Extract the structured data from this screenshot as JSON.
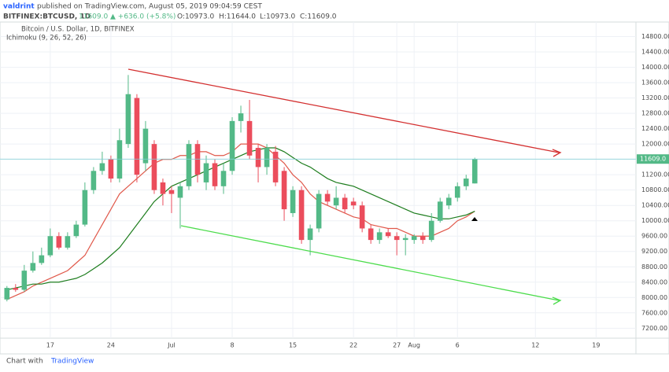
{
  "header": {
    "user": "valdrint",
    "published": "published on TradingView.com, August 05, 2019 09:04:59 CEST",
    "symbol": "BITFINEX:BTCUSD, 1D",
    "price": "11609.0",
    "change": "▲ +636.0 (+5.8%)",
    "open": "O:10973.0",
    "high": "H:11644.0",
    "low": "L:10973.0",
    "close": "C:11609.0"
  },
  "footer": {
    "text": "Chart with",
    "brand": "TradingView"
  },
  "chart_data": {
    "type": "candlestick",
    "title": "Bitcoin / U.S. Dollar, 1D, BITFINEX",
    "subtitle": "Ichimoku (9, 26, 52, 26)",
    "x": [
      0,
      1,
      2,
      3,
      4,
      5,
      6,
      7,
      8,
      9,
      10,
      11,
      12,
      13,
      14,
      15,
      16,
      17,
      18,
      19,
      20,
      21,
      22,
      23,
      24,
      25,
      26,
      27,
      28,
      29,
      30,
      31,
      32,
      33,
      34,
      35,
      36,
      37,
      38,
      39,
      40,
      41,
      42,
      43,
      44,
      45,
      46,
      47,
      48,
      49,
      50,
      51,
      52,
      53,
      54
    ],
    "open": [
      7950,
      8250,
      8200,
      8700,
      8900,
      9100,
      9600,
      9300,
      9600,
      9900,
      10800,
      11300,
      11600,
      11100,
      12000,
      13200,
      11500,
      12000,
      11000,
      10800,
      10600,
      10900,
      12000,
      11000,
      11500,
      10900,
      11300,
      12600,
      12600,
      11900,
      11400,
      11800,
      11300,
      10200,
      10800,
      9500,
      9800,
      10700,
      10400,
      10600,
      10500,
      10400,
      9800,
      9500,
      9700,
      9600,
      9500,
      9500,
      9600,
      9500,
      10000,
      10400,
      10600,
      10900,
      10973
    ],
    "high": [
      8300,
      8350,
      8850,
      9200,
      9300,
      9800,
      9700,
      9700,
      10000,
      11000,
      11400,
      11800,
      11700,
      12400,
      13800,
      13300,
      12600,
      12100,
      11100,
      10900,
      11000,
      12100,
      12100,
      11700,
      11600,
      11500,
      12700,
      13000,
      13150,
      12000,
      12000,
      11950,
      11400,
      10900,
      10900,
      9900,
      10800,
      10800,
      10900,
      10700,
      10600,
      10500,
      9900,
      9800,
      9800,
      9700,
      9650,
      9650,
      9700,
      10200,
      10600,
      10700,
      11000,
      11200,
      11644
    ],
    "low": [
      7900,
      8150,
      8150,
      8650,
      8850,
      9050,
      9250,
      9250,
      9550,
      9850,
      10700,
      11200,
      11000,
      11000,
      11900,
      11000,
      11300,
      10700,
      10400,
      10200,
      9800,
      10800,
      11000,
      10800,
      10800,
      10700,
      11200,
      12300,
      11600,
      11000,
      11200,
      10900,
      10000,
      10100,
      9400,
      9100,
      9700,
      10400,
      10300,
      10200,
      10300,
      9700,
      9400,
      9400,
      9550,
      9100,
      9100,
      9400,
      9400,
      9450,
      9950,
      10300,
      10500,
      10800,
      10973
    ],
    "close": [
      8250,
      8200,
      8700,
      8900,
      9100,
      9600,
      9300,
      9600,
      9900,
      10800,
      11300,
      11500,
      11100,
      12100,
      13300,
      11200,
      12400,
      10800,
      10700,
      10700,
      10900,
      12000,
      11200,
      11500,
      10900,
      11300,
      12600,
      12800,
      11700,
      11400,
      11900,
      11000,
      10300,
      10800,
      9500,
      9800,
      10700,
      10500,
      10600,
      10300,
      10400,
      9800,
      9500,
      9700,
      9600,
      9500,
      9550,
      9600,
      9500,
      10000,
      10500,
      10600,
      10900,
      11100,
      11609
    ],
    "up_color": "#53b987",
    "down_color": "#eb4d5c",
    "series": [
      {
        "color": "#e0584a",
        "values": [
          7950,
          8050,
          8150,
          8300,
          8400,
          8500,
          8600,
          8700,
          8900,
          9100,
          9500,
          9900,
          10300,
          10700,
          10900,
          11100,
          11300,
          11500,
          11600,
          11600,
          11700,
          11700,
          11800,
          11800,
          11700,
          11700,
          11800,
          12000,
          12000,
          12000,
          11900,
          11700,
          11500,
          11200,
          11000,
          10700,
          10500,
          10400,
          10300,
          10200,
          10100,
          10050,
          9900,
          9850,
          9800,
          9800,
          9700,
          9600,
          9600,
          9600,
          9700,
          9800,
          10000,
          10100,
          10250
        ]
      },
      {
        "color": "#1e7d1e",
        "values": [
          8200,
          8250,
          8300,
          8350,
          8350,
          8400,
          8400,
          8450,
          8500,
          8600,
          8750,
          8900,
          9100,
          9300,
          9600,
          9900,
          10200,
          10500,
          10700,
          10900,
          11000,
          11100,
          11200,
          11300,
          11400,
          11500,
          11600,
          11700,
          11800,
          11850,
          11900,
          11900,
          11800,
          11650,
          11500,
          11400,
          11250,
          11100,
          11000,
          10950,
          10900,
          10800,
          10700,
          10600,
          10500,
          10400,
          10300,
          10200,
          10150,
          10100,
          10050,
          10050,
          10100,
          10150,
          10250
        ]
      }
    ],
    "last_price_label": "11609.0",
    "xlim": [
      -0.8,
      72.6
    ],
    "ylim": [
      6940,
      15180
    ],
    "xticks": [
      {
        "value": 5,
        "label": "17"
      },
      {
        "value": 12,
        "label": "24"
      },
      {
        "value": 19,
        "label": "Jul"
      },
      {
        "value": 26,
        "label": "8"
      },
      {
        "value": 33,
        "label": "15"
      },
      {
        "value": 40,
        "label": "22"
      },
      {
        "value": 45,
        "label": "27"
      },
      {
        "value": 47,
        "label": "Aug"
      },
      {
        "value": 52,
        "label": "6"
      },
      {
        "value": 61,
        "label": "12"
      },
      {
        "value": 68,
        "label": "19"
      }
    ],
    "yticks": [
      {
        "value": 7200,
        "label": "7200.00"
      },
      {
        "value": 7600,
        "label": "7600.00"
      },
      {
        "value": 8000,
        "label": "8000.00"
      },
      {
        "value": 8400,
        "label": "8400.00"
      },
      {
        "value": 8800,
        "label": "8800.00"
      },
      {
        "value": 9200,
        "label": "9200.00"
      },
      {
        "value": 9600,
        "label": "9600.00"
      },
      {
        "value": 10000,
        "label": "10000.00"
      },
      {
        "value": 10400,
        "label": "10400.00"
      },
      {
        "value": 10800,
        "label": "10800.00"
      },
      {
        "value": 11200,
        "label": "11200.00"
      },
      {
        "value": 11600,
        "label": "11600.00"
      },
      {
        "value": 12000,
        "label": "12000.00"
      },
      {
        "value": 12400,
        "label": "12400.00"
      },
      {
        "value": 12800,
        "label": "12800.00"
      },
      {
        "value": 13200,
        "label": "13200.00"
      },
      {
        "value": 13600,
        "label": "13600.00"
      },
      {
        "value": 14000,
        "label": "14000.00"
      },
      {
        "value": 14400,
        "label": "14400.00"
      },
      {
        "value": 14800,
        "label": "14800.00"
      }
    ],
    "grid": true
  }
}
